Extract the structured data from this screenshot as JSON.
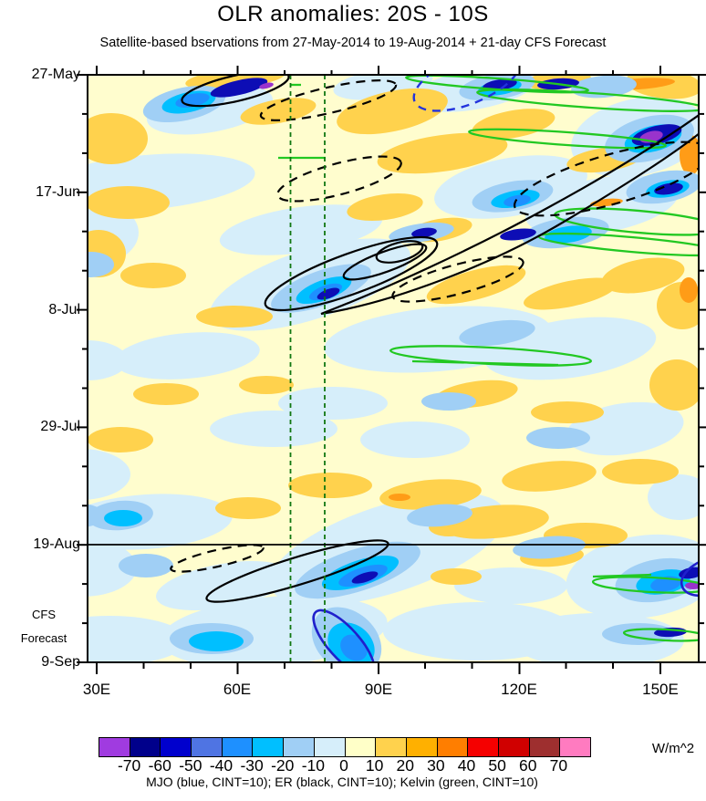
{
  "figure": {
    "title": "OLR anomalies: 20S - 10S",
    "subtitle": "Satellite-based bservations from 27-May-2014 to 19-Aug-2014 + 21-day CFS Forecast",
    "units_label": "W/m^2",
    "caption": "MJO (blue, CINT=10); ER (black, CINT=10); Kelvin (green, CINT=10)"
  },
  "chart_data": {
    "type": "heatmap",
    "subtype": "hovmoller-filled-contour-time-longitude",
    "title": "OLR anomalies: 20S - 10S",
    "quantity": "OLR anomaly",
    "latitude_band": "20S - 10S",
    "period": {
      "observations_start": "27-May-2014",
      "observations_end": "19-Aug-2014",
      "forecast": "21-day CFS Forecast"
    },
    "x_axis": {
      "tick_labels": [
        "30E",
        "60E",
        "90E",
        "120E",
        "150E"
      ],
      "minor_tick_interval_deg": 10,
      "approx_range_deg_east": [
        28,
        158
      ]
    },
    "y_axis": {
      "tick_labels": [
        "27-May",
        "17-Jun",
        "8-Jul",
        "29-Jul",
        "19-Aug",
        "9-Sep"
      ],
      "major_tick_interval_days": 21,
      "minor_tick_interval_days": 7,
      "direction": "time increases downward",
      "forecast_label_lines": [
        "CFS",
        "Forecast"
      ]
    },
    "colorbar": {
      "labels": [
        "-70",
        "-60",
        "-50",
        "-40",
        "-30",
        "-20",
        "-10",
        "0",
        "10",
        "20",
        "30",
        "40",
        "50",
        "60",
        "70"
      ],
      "levels": [
        -70,
        -60,
        -50,
        -40,
        -30,
        -20,
        -10,
        0,
        10,
        20,
        30,
        40,
        50,
        60,
        70
      ],
      "colors": [
        "#A03BE0",
        "#00008B",
        "#0000CD",
        "#4F74E3",
        "#1E90FF",
        "#00BFFF",
        "#A0CFF5",
        "#D6EEFA",
        "#FFFFC8",
        "#FFD24D",
        "#FFB000",
        "#FF7E00",
        "#F50000",
        "#D00000",
        "#9E2F2F",
        "#FF7BC0"
      ],
      "units": "W/m^2"
    },
    "overlays": [
      {
        "name": "MJO",
        "color": "blue",
        "contour_interval": 10,
        "styles": [
          "solid",
          "dashed"
        ]
      },
      {
        "name": "ER",
        "color": "black",
        "contour_interval": 10,
        "styles": [
          "solid",
          "dashed"
        ]
      },
      {
        "name": "Kelvin",
        "color": "green",
        "contour_interval": 10,
        "styles": [
          "solid"
        ]
      }
    ],
    "reference_lines": {
      "vertical_dashed_green_approx_deg_east": [
        71,
        79
      ],
      "horizontal_solid_black_at": "19-Aug (start of CFS forecast)"
    }
  }
}
